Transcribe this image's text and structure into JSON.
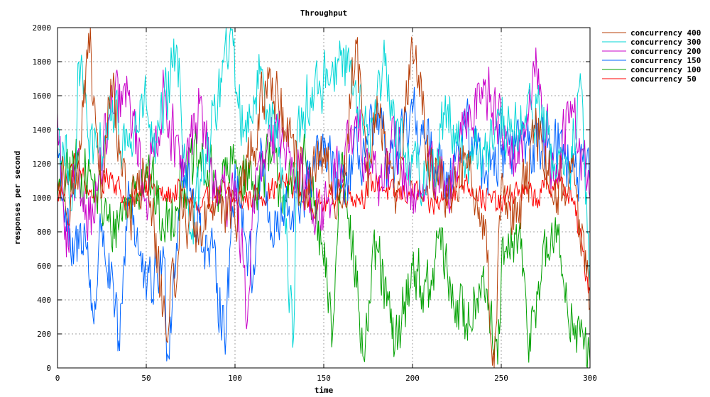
{
  "chart_data": {
    "type": "line",
    "title": "Throughput",
    "xlabel": "time",
    "ylabel": "responses per second",
    "xlim": [
      0,
      300
    ],
    "ylim": [
      0,
      2000
    ],
    "x_ticks": [
      0,
      50,
      100,
      150,
      200,
      250,
      300
    ],
    "y_ticks": [
      0,
      200,
      400,
      600,
      800,
      1000,
      1200,
      1400,
      1600,
      1800,
      2000
    ],
    "grid": true,
    "legend_position": "top-right outside plot",
    "series": [
      {
        "name": "concurrency 400",
        "color": "#b8400a",
        "keypoints": [
          [
            0,
            1100
          ],
          [
            10,
            1050
          ],
          [
            18,
            1850
          ],
          [
            25,
            1000
          ],
          [
            30,
            1700
          ],
          [
            40,
            900
          ],
          [
            50,
            1150
          ],
          [
            62,
            150
          ],
          [
            70,
            950
          ],
          [
            80,
            800
          ],
          [
            90,
            1050
          ],
          [
            100,
            850
          ],
          [
            110,
            1300
          ],
          [
            120,
            1750
          ],
          [
            130,
            1300
          ],
          [
            140,
            1050
          ],
          [
            150,
            1200
          ],
          [
            160,
            950
          ],
          [
            168,
            1930
          ],
          [
            175,
            1000
          ],
          [
            180,
            1600
          ],
          [
            190,
            1000
          ],
          [
            200,
            1890
          ],
          [
            210,
            1200
          ],
          [
            220,
            1000
          ],
          [
            230,
            1250
          ],
          [
            240,
            900
          ],
          [
            246,
            0
          ],
          [
            250,
            1100
          ],
          [
            260,
            850
          ],
          [
            270,
            1400
          ],
          [
            280,
            1000
          ],
          [
            290,
            1200
          ],
          [
            300,
            350
          ]
        ]
      },
      {
        "name": "concurrency 300",
        "color": "#00d6d6",
        "keypoints": [
          [
            0,
            1400
          ],
          [
            10,
            1000
          ],
          [
            12,
            1800
          ],
          [
            20,
            1200
          ],
          [
            30,
            1450
          ],
          [
            40,
            1300
          ],
          [
            50,
            1550
          ],
          [
            55,
            1200
          ],
          [
            67,
            1900
          ],
          [
            75,
            800
          ],
          [
            85,
            1300
          ],
          [
            97,
            1950
          ],
          [
            105,
            1400
          ],
          [
            115,
            1750
          ],
          [
            125,
            1300
          ],
          [
            133,
            180
          ],
          [
            135,
            1400
          ],
          [
            140,
            1550
          ],
          [
            148,
            1650
          ],
          [
            155,
            1800
          ],
          [
            165,
            1800
          ],
          [
            175,
            1300
          ],
          [
            185,
            1850
          ],
          [
            190,
            1400
          ],
          [
            200,
            1200
          ],
          [
            210,
            1100
          ],
          [
            220,
            1550
          ],
          [
            230,
            1200
          ],
          [
            240,
            1300
          ],
          [
            250,
            1350
          ],
          [
            260,
            1400
          ],
          [
            270,
            1550
          ],
          [
            280,
            1200
          ],
          [
            290,
            1200
          ],
          [
            295,
            1650
          ],
          [
            300,
            500
          ]
        ]
      },
      {
        "name": "concurrency 200",
        "color": "#c800c8",
        "keypoints": [
          [
            0,
            1500
          ],
          [
            5,
            650
          ],
          [
            10,
            1100
          ],
          [
            20,
            900
          ],
          [
            30,
            1500
          ],
          [
            40,
            1600
          ],
          [
            50,
            1000
          ],
          [
            60,
            1650
          ],
          [
            70,
            1100
          ],
          [
            80,
            1550
          ],
          [
            90,
            950
          ],
          [
            100,
            1100
          ],
          [
            107,
            280
          ],
          [
            110,
            1000
          ],
          [
            120,
            1300
          ],
          [
            130,
            1350
          ],
          [
            140,
            1050
          ],
          [
            150,
            900
          ],
          [
            160,
            1200
          ],
          [
            170,
            1400
          ],
          [
            180,
            1100
          ],
          [
            190,
            1300
          ],
          [
            200,
            1000
          ],
          [
            210,
            1150
          ],
          [
            220,
            1000
          ],
          [
            230,
            1400
          ],
          [
            240,
            1700
          ],
          [
            250,
            1450
          ],
          [
            260,
            1200
          ],
          [
            270,
            1750
          ],
          [
            280,
            1100
          ],
          [
            290,
            1550
          ],
          [
            300,
            1000
          ]
        ]
      },
      {
        "name": "concurrency 150",
        "color": "#0064ff",
        "keypoints": [
          [
            0,
            1300
          ],
          [
            8,
            600
          ],
          [
            15,
            850
          ],
          [
            20,
            300
          ],
          [
            25,
            850
          ],
          [
            35,
            100
          ],
          [
            40,
            1100
          ],
          [
            50,
            400
          ],
          [
            60,
            650
          ],
          [
            62,
            80
          ],
          [
            70,
            1200
          ],
          [
            80,
            850
          ],
          [
            90,
            500
          ],
          [
            95,
            200
          ],
          [
            100,
            1200
          ],
          [
            110,
            500
          ],
          [
            115,
            1300
          ],
          [
            120,
            750
          ],
          [
            130,
            900
          ],
          [
            140,
            1050
          ],
          [
            150,
            1250
          ],
          [
            160,
            1050
          ],
          [
            170,
            1250
          ],
          [
            180,
            1400
          ],
          [
            190,
            1150
          ],
          [
            200,
            1500
          ],
          [
            210,
            1250
          ],
          [
            220,
            1150
          ],
          [
            230,
            1400
          ],
          [
            240,
            1200
          ],
          [
            250,
            1250
          ],
          [
            260,
            1350
          ],
          [
            270,
            1300
          ],
          [
            280,
            1400
          ],
          [
            290,
            1150
          ],
          [
            300,
            1100
          ]
        ]
      },
      {
        "name": "concurrency 100",
        "color": "#00a000",
        "keypoints": [
          [
            0,
            1000
          ],
          [
            10,
            1200
          ],
          [
            20,
            1100
          ],
          [
            30,
            800
          ],
          [
            40,
            1000
          ],
          [
            50,
            1200
          ],
          [
            60,
            800
          ],
          [
            70,
            1100
          ],
          [
            80,
            1200
          ],
          [
            90,
            1050
          ],
          [
            100,
            1200
          ],
          [
            110,
            1100
          ],
          [
            120,
            1200
          ],
          [
            130,
            1000
          ],
          [
            140,
            1200
          ],
          [
            150,
            600
          ],
          [
            155,
            200
          ],
          [
            160,
            1250
          ],
          [
            165,
            900
          ],
          [
            172,
            70
          ],
          [
            180,
            700
          ],
          [
            190,
            100
          ],
          [
            200,
            600
          ],
          [
            210,
            400
          ],
          [
            215,
            800
          ],
          [
            220,
            500
          ],
          [
            230,
            250
          ],
          [
            240,
            600
          ],
          [
            245,
            150
          ],
          [
            248,
            20
          ],
          [
            250,
            550
          ],
          [
            260,
            800
          ],
          [
            265,
            150
          ],
          [
            270,
            450
          ],
          [
            280,
            800
          ],
          [
            290,
            300
          ],
          [
            300,
            40
          ]
        ]
      },
      {
        "name": "concurrency 50",
        "color": "#ff0000",
        "keypoints": [
          [
            0,
            1000
          ],
          [
            10,
            1200
          ],
          [
            20,
            1000
          ],
          [
            30,
            1150
          ],
          [
            40,
            950
          ],
          [
            50,
            1100
          ],
          [
            60,
            1000
          ],
          [
            70,
            1050
          ],
          [
            80,
            900
          ],
          [
            90,
            1050
          ],
          [
            100,
            980
          ],
          [
            110,
            1000
          ],
          [
            120,
            1050
          ],
          [
            130,
            1100
          ],
          [
            140,
            1000
          ],
          [
            150,
            950
          ],
          [
            160,
            1050
          ],
          [
            170,
            1000
          ],
          [
            180,
            1100
          ],
          [
            190,
            1000
          ],
          [
            200,
            1050
          ],
          [
            210,
            950
          ],
          [
            220,
            1000
          ],
          [
            230,
            1100
          ],
          [
            240,
            1000
          ],
          [
            250,
            950
          ],
          [
            260,
            1050
          ],
          [
            270,
            1000
          ],
          [
            280,
            1100
          ],
          [
            290,
            1000
          ],
          [
            300,
            450
          ]
        ]
      }
    ]
  }
}
